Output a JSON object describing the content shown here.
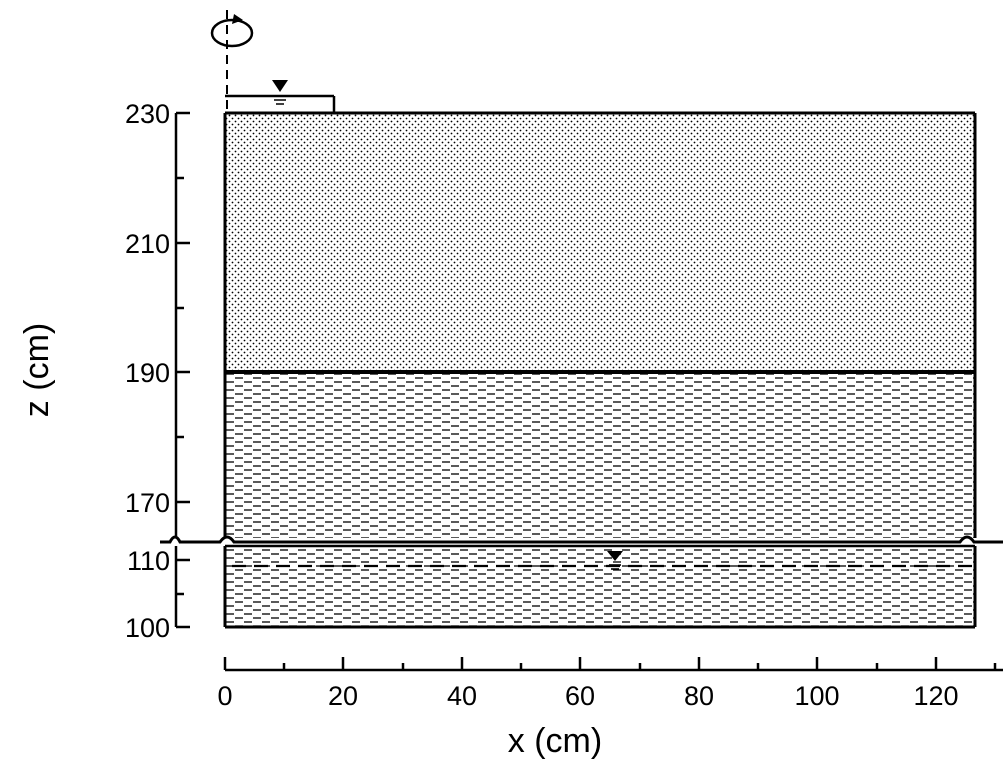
{
  "figure": {
    "y_axis": {
      "label": "z (cm)",
      "ticks_upper": [
        "230",
        "210",
        "190",
        "170"
      ],
      "ticks_lower": [
        "110",
        "100"
      ]
    },
    "x_axis": {
      "label": "x (cm)",
      "ticks": [
        "0",
        "20",
        "40",
        "60",
        "80",
        "100",
        "120"
      ]
    },
    "layers": [
      {
        "material": "upper-stippled",
        "top_z": 230,
        "bottom_z": 190,
        "pattern": "dots"
      },
      {
        "material": "lower-dashed",
        "top_z": 190,
        "bottom_z": 100,
        "pattern": "dashes"
      }
    ],
    "ponded_water": {
      "x_from": 0,
      "x_to": 18,
      "symbol": "water-table-triangle"
    },
    "water_table": {
      "z": 109,
      "style": "dashed",
      "symbol_x": 65
    },
    "rotation_axis": {
      "x": 0,
      "symbol": "rotation-arrow"
    },
    "colors": {
      "ink": "#000000",
      "paper": "#ffffff"
    }
  }
}
